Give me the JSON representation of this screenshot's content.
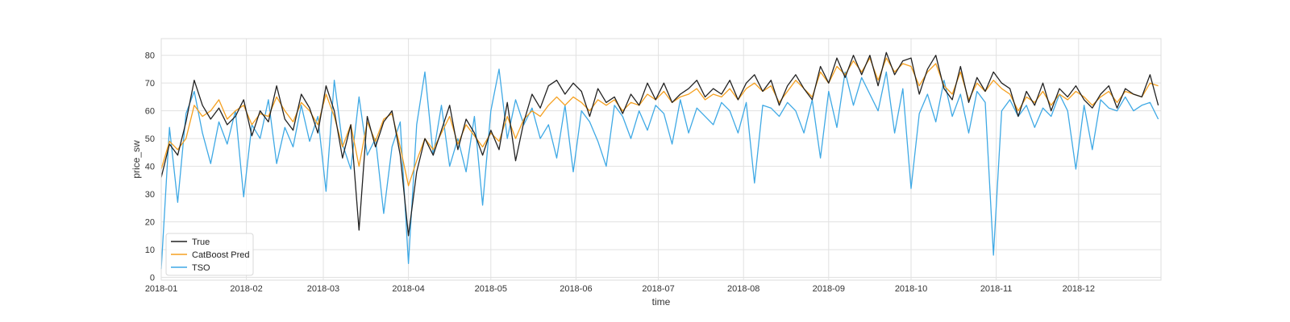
{
  "chart_data": {
    "type": "line",
    "xlabel": "time",
    "ylabel": "price_sw",
    "xlim": [
      "2018-01-01",
      "2018-12-31"
    ],
    "ylim": [
      -1,
      86
    ],
    "grid": true,
    "legend_position": "bottom-left",
    "x_ticks": [
      "2018-01",
      "2018-02",
      "2018-03",
      "2018-04",
      "2018-05",
      "2018-06",
      "2018-07",
      "2018-08",
      "2018-09",
      "2018-10",
      "2018-11",
      "2018-12"
    ],
    "y_ticks": [
      0,
      10,
      20,
      30,
      40,
      50,
      60,
      70,
      80
    ],
    "series": [
      {
        "name": "True",
        "color": "#222222",
        "x": [
          "2018-01-01",
          "2018-01-04",
          "2018-01-07",
          "2018-01-10",
          "2018-01-13",
          "2018-01-16",
          "2018-01-19",
          "2018-01-22",
          "2018-01-25",
          "2018-01-28",
          "2018-01-31",
          "2018-02-03",
          "2018-02-06",
          "2018-02-09",
          "2018-02-12",
          "2018-02-15",
          "2018-02-18",
          "2018-02-21",
          "2018-02-24",
          "2018-02-27",
          "2018-03-02",
          "2018-03-05",
          "2018-03-08",
          "2018-03-11",
          "2018-03-14",
          "2018-03-17",
          "2018-03-20",
          "2018-03-23",
          "2018-03-26",
          "2018-03-29",
          "2018-04-01",
          "2018-04-04",
          "2018-04-07",
          "2018-04-10",
          "2018-04-13",
          "2018-04-16",
          "2018-04-19",
          "2018-04-22",
          "2018-04-25",
          "2018-04-28",
          "2018-05-01",
          "2018-05-04",
          "2018-05-07",
          "2018-05-10",
          "2018-05-13",
          "2018-05-16",
          "2018-05-19",
          "2018-05-22",
          "2018-05-25",
          "2018-05-28",
          "2018-05-31",
          "2018-06-03",
          "2018-06-06",
          "2018-06-09",
          "2018-06-12",
          "2018-06-15",
          "2018-06-18",
          "2018-06-21",
          "2018-06-24",
          "2018-06-27",
          "2018-06-30",
          "2018-07-03",
          "2018-07-06",
          "2018-07-09",
          "2018-07-12",
          "2018-07-15",
          "2018-07-18",
          "2018-07-21",
          "2018-07-24",
          "2018-07-27",
          "2018-07-30",
          "2018-08-02",
          "2018-08-05",
          "2018-08-08",
          "2018-08-11",
          "2018-08-14",
          "2018-08-17",
          "2018-08-20",
          "2018-08-23",
          "2018-08-26",
          "2018-08-29",
          "2018-09-01",
          "2018-09-04",
          "2018-09-07",
          "2018-09-10",
          "2018-09-13",
          "2018-09-16",
          "2018-09-19",
          "2018-09-22",
          "2018-09-25",
          "2018-09-28",
          "2018-10-01",
          "2018-10-04",
          "2018-10-07",
          "2018-10-10",
          "2018-10-13",
          "2018-10-16",
          "2018-10-19",
          "2018-10-22",
          "2018-10-25",
          "2018-10-28",
          "2018-10-31",
          "2018-11-03",
          "2018-11-06",
          "2018-11-09",
          "2018-11-12",
          "2018-11-15",
          "2018-11-18",
          "2018-11-21",
          "2018-11-24",
          "2018-11-27",
          "2018-11-30",
          "2018-12-03",
          "2018-12-06",
          "2018-12-09",
          "2018-12-12",
          "2018-12-15",
          "2018-12-18",
          "2018-12-21",
          "2018-12-24",
          "2018-12-27",
          "2018-12-30"
        ],
        "y": [
          36,
          48,
          44,
          56,
          71,
          62,
          57,
          61,
          55,
          58,
          64,
          51,
          60,
          56,
          69,
          57,
          53,
          66,
          61,
          52,
          69,
          60,
          43,
          55,
          17,
          58,
          47,
          56,
          60,
          44,
          15,
          38,
          50,
          44,
          53,
          62,
          46,
          57,
          52,
          44,
          53,
          46,
          63,
          42,
          56,
          66,
          61,
          69,
          71,
          66,
          70,
          67,
          58,
          68,
          63,
          65,
          59,
          66,
          62,
          70,
          64,
          70,
          63,
          66,
          68,
          71,
          65,
          68,
          66,
          71,
          64,
          70,
          73,
          67,
          71,
          62,
          69,
          73,
          68,
          64,
          76,
          70,
          79,
          72,
          80,
          73,
          80,
          69,
          81,
          73,
          78,
          79,
          66,
          75,
          80,
          68,
          64,
          76,
          63,
          72,
          67,
          74,
          70,
          68,
          58,
          67,
          62,
          70,
          60,
          68,
          65,
          69,
          64,
          61,
          66,
          69,
          61,
          68,
          66,
          65,
          73,
          62
        ]
      },
      {
        "name": "CatBoost Pred",
        "color": "#f5a020",
        "x": [
          "2018-01-01",
          "2018-01-04",
          "2018-01-07",
          "2018-01-10",
          "2018-01-13",
          "2018-01-16",
          "2018-01-19",
          "2018-01-22",
          "2018-01-25",
          "2018-01-28",
          "2018-01-31",
          "2018-02-03",
          "2018-02-06",
          "2018-02-09",
          "2018-02-12",
          "2018-02-15",
          "2018-02-18",
          "2018-02-21",
          "2018-02-24",
          "2018-02-27",
          "2018-03-02",
          "2018-03-05",
          "2018-03-08",
          "2018-03-11",
          "2018-03-14",
          "2018-03-17",
          "2018-03-20",
          "2018-03-23",
          "2018-03-26",
          "2018-03-29",
          "2018-04-01",
          "2018-04-04",
          "2018-04-07",
          "2018-04-10",
          "2018-04-13",
          "2018-04-16",
          "2018-04-19",
          "2018-04-22",
          "2018-04-25",
          "2018-04-28",
          "2018-05-01",
          "2018-05-04",
          "2018-05-07",
          "2018-05-10",
          "2018-05-13",
          "2018-05-16",
          "2018-05-19",
          "2018-05-22",
          "2018-05-25",
          "2018-05-28",
          "2018-05-31",
          "2018-06-03",
          "2018-06-06",
          "2018-06-09",
          "2018-06-12",
          "2018-06-15",
          "2018-06-18",
          "2018-06-21",
          "2018-06-24",
          "2018-06-27",
          "2018-06-30",
          "2018-07-03",
          "2018-07-06",
          "2018-07-09",
          "2018-07-12",
          "2018-07-15",
          "2018-07-18",
          "2018-07-21",
          "2018-07-24",
          "2018-07-27",
          "2018-07-30",
          "2018-08-02",
          "2018-08-05",
          "2018-08-08",
          "2018-08-11",
          "2018-08-14",
          "2018-08-17",
          "2018-08-20",
          "2018-08-23",
          "2018-08-26",
          "2018-08-29",
          "2018-09-01",
          "2018-09-04",
          "2018-09-07",
          "2018-09-10",
          "2018-09-13",
          "2018-09-16",
          "2018-09-19",
          "2018-09-22",
          "2018-09-25",
          "2018-09-28",
          "2018-10-01",
          "2018-10-04",
          "2018-10-07",
          "2018-10-10",
          "2018-10-13",
          "2018-10-16",
          "2018-10-19",
          "2018-10-22",
          "2018-10-25",
          "2018-10-28",
          "2018-10-31",
          "2018-11-03",
          "2018-11-06",
          "2018-11-09",
          "2018-11-12",
          "2018-11-15",
          "2018-11-18",
          "2018-11-21",
          "2018-11-24",
          "2018-11-27",
          "2018-11-30",
          "2018-12-03",
          "2018-12-06",
          "2018-12-09",
          "2018-12-12",
          "2018-12-15",
          "2018-12-18",
          "2018-12-21",
          "2018-12-24",
          "2018-12-27",
          "2018-12-30"
        ],
        "y": [
          39,
          49,
          46,
          50,
          62,
          58,
          60,
          64,
          57,
          60,
          62,
          55,
          59,
          58,
          65,
          60,
          56,
          63,
          60,
          55,
          66,
          58,
          47,
          55,
          40,
          56,
          49,
          57,
          59,
          47,
          33,
          42,
          50,
          46,
          52,
          58,
          48,
          55,
          51,
          47,
          52,
          49,
          58,
          50,
          57,
          60,
          58,
          62,
          65,
          62,
          65,
          63,
          60,
          64,
          62,
          64,
          60,
          63,
          62,
          66,
          64,
          67,
          63,
          65,
          66,
          68,
          64,
          66,
          65,
          68,
          64,
          68,
          70,
          67,
          69,
          63,
          67,
          71,
          68,
          65,
          74,
          70,
          76,
          73,
          78,
          74,
          79,
          71,
          79,
          74,
          77,
          76,
          69,
          74,
          77,
          69,
          66,
          74,
          64,
          70,
          67,
          71,
          68,
          66,
          60,
          65,
          63,
          67,
          62,
          66,
          64,
          67,
          65,
          62,
          65,
          67,
          63,
          67,
          66,
          65,
          70,
          69
        ]
      },
      {
        "name": "TSO",
        "color": "#3fa9e5",
        "x": [
          "2018-01-01",
          "2018-01-04",
          "2018-01-07",
          "2018-01-10",
          "2018-01-13",
          "2018-01-16",
          "2018-01-19",
          "2018-01-22",
          "2018-01-25",
          "2018-01-28",
          "2018-01-31",
          "2018-02-03",
          "2018-02-06",
          "2018-02-09",
          "2018-02-12",
          "2018-02-15",
          "2018-02-18",
          "2018-02-21",
          "2018-02-24",
          "2018-02-27",
          "2018-03-02",
          "2018-03-05",
          "2018-03-08",
          "2018-03-11",
          "2018-03-14",
          "2018-03-17",
          "2018-03-20",
          "2018-03-23",
          "2018-03-26",
          "2018-03-29",
          "2018-04-01",
          "2018-04-04",
          "2018-04-07",
          "2018-04-10",
          "2018-04-13",
          "2018-04-16",
          "2018-04-19",
          "2018-04-22",
          "2018-04-25",
          "2018-04-28",
          "2018-05-01",
          "2018-05-04",
          "2018-05-07",
          "2018-05-10",
          "2018-05-13",
          "2018-05-16",
          "2018-05-19",
          "2018-05-22",
          "2018-05-25",
          "2018-05-28",
          "2018-05-31",
          "2018-06-03",
          "2018-06-06",
          "2018-06-09",
          "2018-06-12",
          "2018-06-15",
          "2018-06-18",
          "2018-06-21",
          "2018-06-24",
          "2018-06-27",
          "2018-06-30",
          "2018-07-03",
          "2018-07-06",
          "2018-07-09",
          "2018-07-12",
          "2018-07-15",
          "2018-07-18",
          "2018-07-21",
          "2018-07-24",
          "2018-07-27",
          "2018-07-30",
          "2018-08-02",
          "2018-08-05",
          "2018-08-08",
          "2018-08-11",
          "2018-08-14",
          "2018-08-17",
          "2018-08-20",
          "2018-08-23",
          "2018-08-26",
          "2018-08-29",
          "2018-09-01",
          "2018-09-04",
          "2018-09-07",
          "2018-09-10",
          "2018-09-13",
          "2018-09-16",
          "2018-09-19",
          "2018-09-22",
          "2018-09-25",
          "2018-09-28",
          "2018-10-01",
          "2018-10-04",
          "2018-10-07",
          "2018-10-10",
          "2018-10-13",
          "2018-10-16",
          "2018-10-19",
          "2018-10-22",
          "2018-10-25",
          "2018-10-28",
          "2018-10-31",
          "2018-11-03",
          "2018-11-06",
          "2018-11-09",
          "2018-11-12",
          "2018-11-15",
          "2018-11-18",
          "2018-11-21",
          "2018-11-24",
          "2018-11-27",
          "2018-11-30",
          "2018-12-03",
          "2018-12-06",
          "2018-12-09",
          "2018-12-12",
          "2018-12-15",
          "2018-12-18",
          "2018-12-21",
          "2018-12-24",
          "2018-12-27",
          "2018-12-30"
        ],
        "y": [
          3,
          54,
          27,
          59,
          67,
          52,
          41,
          56,
          48,
          60,
          29,
          55,
          50,
          64,
          41,
          54,
          47,
          62,
          49,
          58,
          31,
          71,
          48,
          39,
          65,
          44,
          50,
          23,
          47,
          56,
          5,
          55,
          74,
          44,
          62,
          40,
          50,
          38,
          58,
          26,
          60,
          75,
          50,
          64,
          55,
          61,
          50,
          55,
          43,
          62,
          38,
          60,
          56,
          49,
          40,
          62,
          58,
          50,
          60,
          53,
          62,
          59,
          48,
          64,
          52,
          61,
          58,
          55,
          63,
          60,
          52,
          63,
          34,
          62,
          61,
          58,
          63,
          60,
          52,
          64,
          43,
          67,
          54,
          74,
          62,
          72,
          66,
          60,
          74,
          52,
          68,
          32,
          59,
          66,
          56,
          71,
          58,
          66,
          52,
          67,
          63,
          8,
          60,
          64,
          58,
          62,
          54,
          61,
          58,
          66,
          60,
          39,
          62,
          46,
          64,
          61,
          60,
          65,
          60,
          62,
          63,
          57
        ]
      }
    ]
  }
}
